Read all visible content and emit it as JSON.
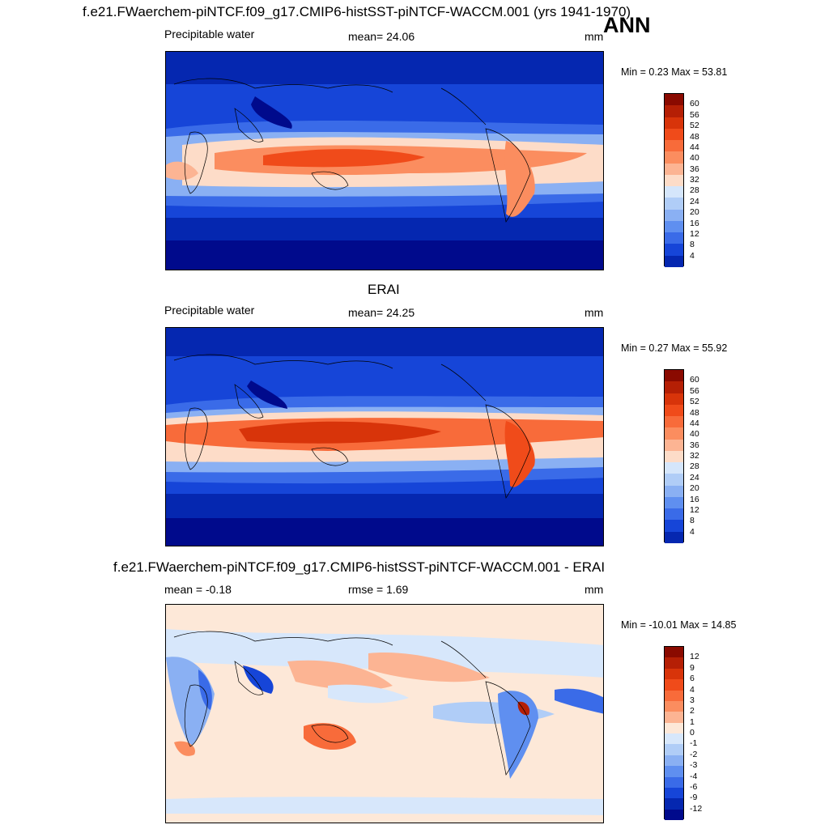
{
  "title": "f.e21.FWaerchem-piNTCF.f09_g17.CMIP6-histSST-piNTCF-WACCM.001 (yrs 1941-1970)",
  "season": "ANN",
  "panels": [
    {
      "title": "",
      "left_label": "Precipitable water",
      "center_label": "mean=  24.06",
      "units": "mm",
      "minmax": "Min =   0.23 Max =  53.81",
      "levels": [
        "60",
        "56",
        "52",
        "48",
        "44",
        "40",
        "36",
        "32",
        "28",
        "24",
        "20",
        "16",
        "12",
        "8",
        "4"
      ]
    },
    {
      "title": "ERAI",
      "left_label": "Precipitable water",
      "center_label": "mean=  24.25",
      "units": "mm",
      "minmax": "Min =   0.27 Max =  55.92",
      "levels": [
        "60",
        "56",
        "52",
        "48",
        "44",
        "40",
        "36",
        "32",
        "28",
        "24",
        "20",
        "16",
        "12",
        "8",
        "4"
      ]
    },
    {
      "title": "f.e21.FWaerchem-piNTCF.f09_g17.CMIP6-histSST-piNTCF-WACCM.001 - ERAI",
      "left_label": "mean =  -0.18",
      "center_label": "rmse =   1.69",
      "units": "mm",
      "minmax": "Min = -10.01 Max =  14.85",
      "levels": [
        "12",
        "9",
        "6",
        "4",
        "3",
        "2",
        "1",
        "0",
        "-1",
        "-2",
        "-3",
        "-4",
        "-6",
        "-9",
        "-12"
      ]
    }
  ],
  "colors": {
    "abs_scale": [
      "#8a0a00",
      "#b51f05",
      "#d8340a",
      "#f04b1a",
      "#f86b3a",
      "#fb8d5f",
      "#fcb493",
      "#fddcc8",
      "#fdeee2",
      "#d5e6fb",
      "#b0cdf7",
      "#8ab0f3",
      "#5f8ff0",
      "#3a6be8",
      "#1645d8",
      "#0527b0",
      "#000a8c"
    ],
    "diff_scale": [
      "#8a0a00",
      "#b51f05",
      "#d8340a",
      "#f04b1a",
      "#f86b3a",
      "#fb8d5f",
      "#fcb493",
      "#fde8d8",
      "#d7e7fb",
      "#b0cdf7",
      "#8ab0f3",
      "#5f8ff0",
      "#3a6be8",
      "#1645d8",
      "#0527b0",
      "#000a8c"
    ]
  }
}
